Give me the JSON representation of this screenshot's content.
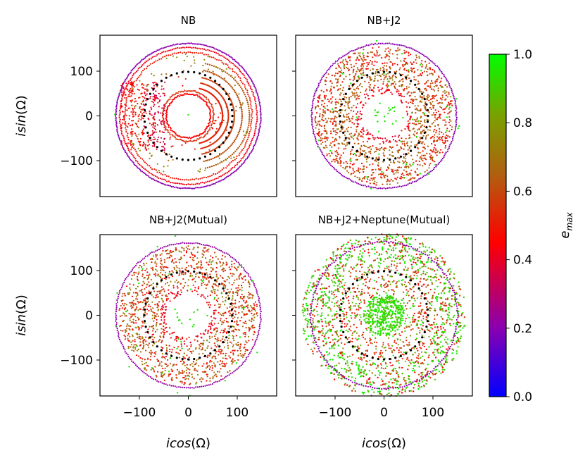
{
  "chart_data": [
    {
      "type": "scatter",
      "panel": "top-left",
      "title": "NB",
      "xlabel": "",
      "ylabel": "isin(Ω)",
      "xlim": [
        -180,
        180
      ],
      "ylim": [
        -180,
        180
      ],
      "xticks": [],
      "yticks": [
        100,
        0,
        -100
      ],
      "ytick_labels": [
        "100",
        "0",
        "−100"
      ],
      "description_values": {
        "outer_ring_radius": 148,
        "inner_hole_radius": 45,
        "dotted_circle_radius": 90,
        "e_max_range": [
          0.15,
          0.6
        ]
      }
    },
    {
      "type": "scatter",
      "panel": "top-right",
      "title": "NB+J2",
      "xlabel": "",
      "ylabel": "",
      "xlim": [
        -180,
        180
      ],
      "ylim": [
        -180,
        180
      ],
      "xticks": [],
      "yticks": [],
      "description_values": {
        "outer_ring_radius": 148,
        "inner_hole_radius": 45,
        "dotted_circle_radius": 90,
        "e_max_range": [
          0.15,
          0.95
        ]
      }
    },
    {
      "type": "scatter",
      "panel": "bottom-left",
      "title": "NB+J2(Mutual)",
      "xlabel": "icos(Ω)",
      "ylabel": "isin(Ω)",
      "xlim": [
        -180,
        180
      ],
      "ylim": [
        -180,
        180
      ],
      "xticks": [
        -100,
        0,
        100
      ],
      "xtick_labels": [
        "−100",
        "0",
        "100"
      ],
      "yticks": [
        100,
        0,
        -100
      ],
      "ytick_labels": [
        "100",
        "0",
        "−100"
      ],
      "description_values": {
        "outer_ring_radius": 148,
        "inner_hole_radius": 45,
        "dotted_circle_radius": 90,
        "e_max_range": [
          0.15,
          0.95
        ]
      }
    },
    {
      "type": "scatter",
      "panel": "bottom-right",
      "title": "NB+J2+Neptune(Mutual)",
      "xlabel": "icos(Ω)",
      "ylabel": "",
      "xlim": [
        -180,
        180
      ],
      "ylim": [
        -180,
        180
      ],
      "xticks": [
        -100,
        0,
        100
      ],
      "xtick_labels": [
        "−100",
        "0",
        "100"
      ],
      "yticks": [],
      "description_values": {
        "outer_ring_radius": 148,
        "inner_hole_radius": 45,
        "dotted_circle_radius": 90,
        "e_max_range": [
          0.15,
          1.0
        ]
      }
    }
  ],
  "colorbar": {
    "label": "e",
    "label_sub": "max",
    "range": [
      0.0,
      1.0
    ],
    "ticks": [
      0.0,
      0.2,
      0.4,
      0.6,
      0.8,
      1.0
    ],
    "tick_labels": [
      "0.0",
      "0.2",
      "0.4",
      "0.6",
      "0.8",
      "1.0"
    ],
    "colors": [
      "#0000ff",
      "#8a00b0",
      "#ff0000",
      "#b06010",
      "#7aa000",
      "#00ff00"
    ]
  },
  "colors": {
    "dotted_circle": "#000000",
    "purple": "#7b1fa2",
    "green": "#22ee22"
  }
}
